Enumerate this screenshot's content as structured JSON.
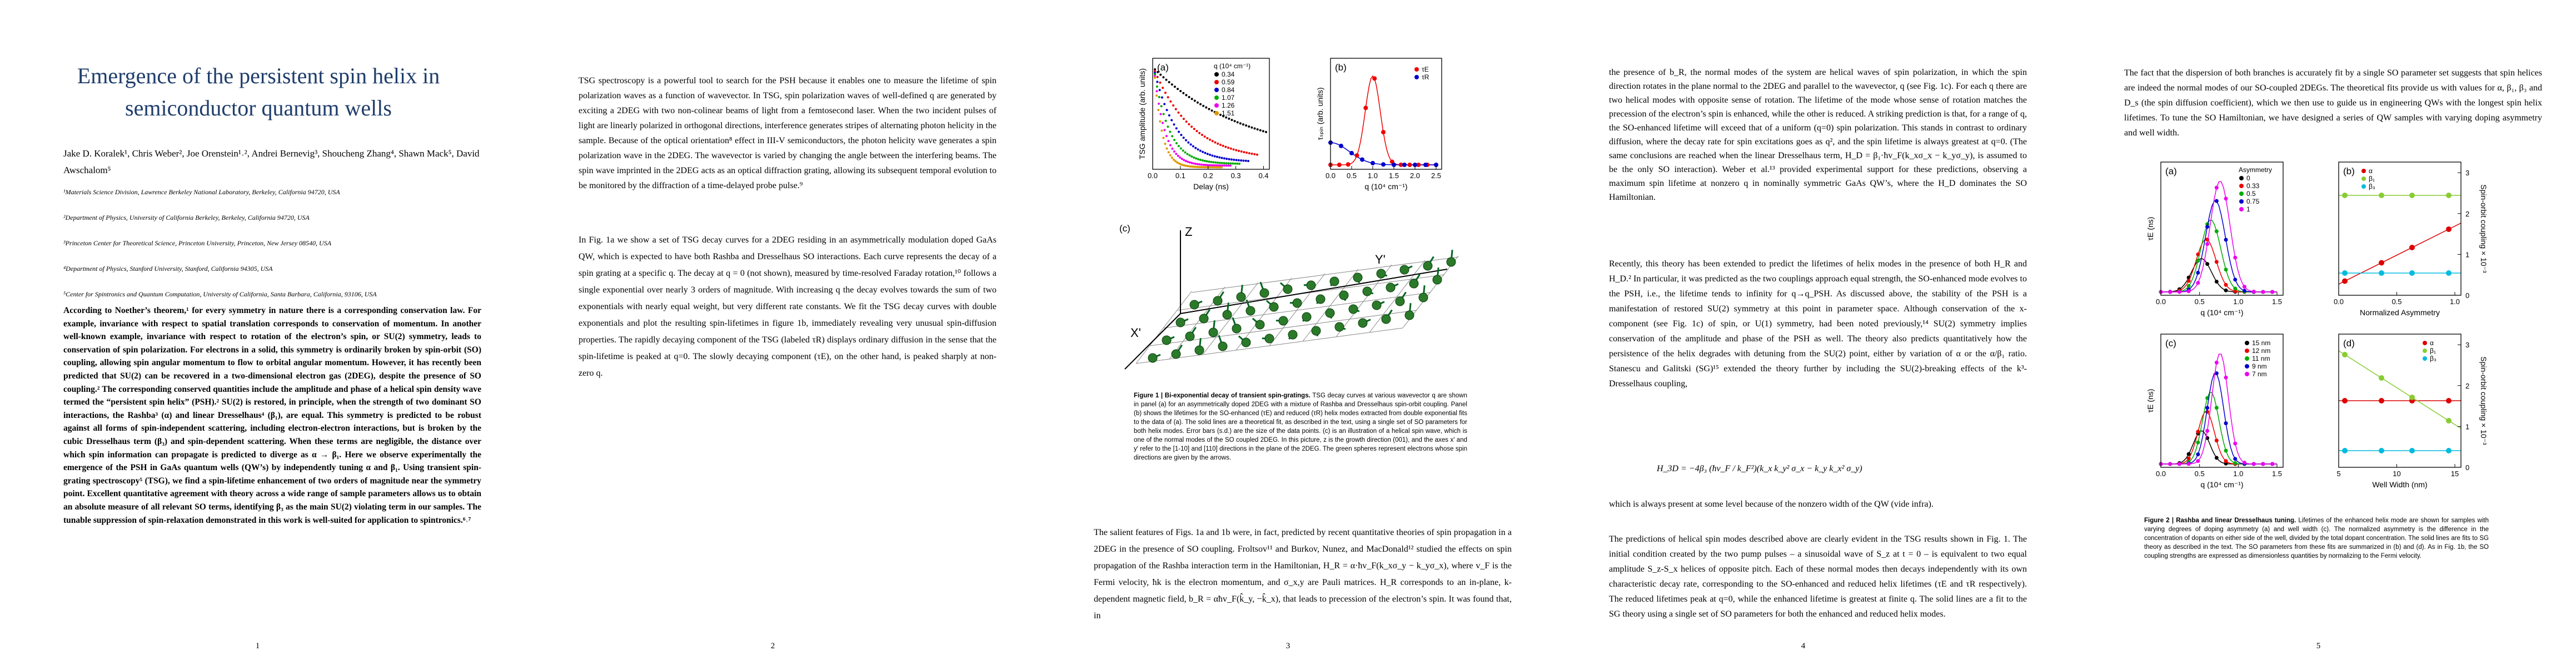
{
  "pages": [
    {
      "title": "Emergence of the persistent spin helix in semiconductor quantum wells",
      "authors": "Jake D. Koralek¹, Chris Weber², Joe Orenstein¹˒², Andrei Bernevig³, Shoucheng Zhang⁴, Shawn Mack⁵, David Awschalom⁵",
      "affiliations": [
        "¹Materials Science Division, Lawrence Berkeley National Laboratory, Berkeley, California 94720, USA",
        "²Department of Physics, University of California Berkeley, Berkeley, California 94720, USA",
        "³Princeton Center for Theoretical Science, Princeton University, Princeton, New Jersey 08540, USA",
        "⁴Department of Physics, Stanford University, Stanford, California 94305, USA",
        "⁵Center for Spintronics and Quantum Computation, University of California, Santa Barbara, California, 93106, USA"
      ],
      "abstract": "According to Noether’s theorem,¹ for every symmetry in nature there is a corresponding conservation law. For example, invariance with respect to spatial translation corresponds to conservation of momentum. In another well-known example, invariance with respect to rotation of the electron’s spin, or SU(2) symmetry, leads to conservation of spin polarization. For electrons in a solid, this symmetry is ordinarily broken by spin-orbit (SO) coupling, allowing spin angular momentum to flow to orbital angular momentum. However, it has recently been predicted that SU(2) can be recovered in a two-dimensional electron gas (2DEG), despite the presence of SO coupling.² The corresponding conserved quantities include the amplitude and phase of a helical spin density wave termed the “persistent spin helix” (PSH).² SU(2) is restored, in principle, when the strength of two dominant SO interactions, the Rashba³ (α) and linear Dresselhaus⁴ (β₁), are equal. This symmetry is predicted to be robust against all forms of spin-independent scattering, including electron-electron interactions, but is broken by the cubic Dresselhaus term (β₃) and spin-dependent scattering. When these terms are negligible, the distance over which spin information can propagate is predicted to diverge as α → β₁. Here we observe experimentally the emergence of the PSH in GaAs quantum wells (QW’s) by independently tuning α and β₁. Using transient spin-grating spectroscopy⁵ (TSG), we find a spin-lifetime enhancement of two orders of magnitude near the symmetry point. Excellent quantitative agreement with theory across a wide range of sample parameters allows us to obtain an absolute measure of all relevant SO terms, identifying β₃ as the main SU(2) violating term in our samples. The tunable suppression of spin-relaxation demonstrated in this work is well-suited for application to spintronics.⁶˒⁷",
      "page_number": 1
    },
    {
      "paragraphs": [
        "TSG spectroscopy is a powerful tool to search for the PSH because it enables one to measure the lifetime of spin polarization waves as a function of wavevector. In TSG, spin polarization waves of well-defined q are generated by exciting a 2DEG with two non-colinear beams of light from a femtosecond laser. When the two incident pulses of light are linearly polarized in orthogonal directions, interference generates stripes of alternating photon helicity in the sample. Because of the optical orientation⁸ effect in III-V semiconductors, the photon helicity wave generates a spin polarization wave in the 2DEG. The wavevector is varied by changing the angle between the interfering beams. The spin wave imprinted in the 2DEG acts as an optical diffraction grating, allowing its subsequent temporal evolution to be monitored by the diffraction of a time-delayed probe pulse.⁹",
        "In Fig. 1a we show a set of TSG decay curves for a 2DEG residing in an asymmetrically modulation doped GaAs QW, which is expected to have both Rashba and Dresselhaus SO interactions. Each curve represents the decay of a spin grating at a specific q. The decay at q = 0 (not shown), measured by time-resolved Faraday rotation,¹⁰ follows a single exponential over nearly 3 orders of magnitude. With increasing q the decay evolves towards the sum of two exponentials with nearly equal weight, but very different rate constants. We fit the TSG decay curves with double exponentials and plot the resulting spin-lifetimes in figure 1b, immediately revealing very unusual spin-diffusion properties. The rapidly decaying component of the TSG (labeled τR) displays ordinary diffusion in the sense that the spin-lifetime is peaked at q=0. The slowly decaying component (τE), on the other hand, is peaked sharply at non-zero q."
      ],
      "page_number": 2
    },
    {
      "figure": {
        "panels": [
          {
            "label": "(a)",
            "ylabel": "TSG amplitude (arb. units)",
            "xlabel": "Delay (ns)",
            "xticks": [
              "0.0",
              "0.1",
              "0.2",
              "0.3",
              "0.4"
            ],
            "legend_title": "q (10⁴ cm⁻¹)",
            "legend": [
              "0.34",
              "0.59",
              "0.84",
              "1.07",
              "1.26",
              "1.51"
            ]
          },
          {
            "label": "(b)",
            "ylabel": "τₛₚᵢₙ (arb. units)",
            "xlabel": "q (10⁴ cm⁻¹)",
            "xticks": [
              "0.0",
              "0.5",
              "1.0",
              "1.5",
              "2.0",
              "2.5"
            ],
            "legend": [
              "τE",
              "τR"
            ]
          },
          {
            "label": "(c)",
            "axes": [
              "Z",
              "Y'",
              "X'"
            ]
          }
        ],
        "caption_title": "Figure 1 | Bi-exponential decay of transient spin-gratings.",
        "caption": "TSG decay curves at various wavevector q are shown in panel (a) for an asymmetrically doped 2DEG with a mixture of Rashba and Dresselhaus spin-orbit coupling. Panel (b) shows the lifetimes for the SO-enhanced (τE) and reduced (τR) helix modes extracted from double exponential fits to the data of (a). The solid lines are a theoretical fit, as described in the text, using a single set of SO parameters for both helix modes. Error bars (s.d.) are the size of the data points. (c) is an illustration of a helical spin wave, which is one of the normal modes of the SO coupled 2DEG. In this picture, z is the growth direction (001), and the axes x′ and y′ refer to the [1-10] and [110] directions in the plane of the 2DEG. The green spheres represent electrons whose spin directions are given by the arrows."
      },
      "paragraphs": [
        "The salient features of Figs. 1a and 1b were, in fact, predicted by recent quantitative theories of spin propagation in a 2DEG in the presence of SO coupling. Froltsov¹¹ and Burkov, Nunez, and MacDonald¹² studied the effects on spin propagation of the Rashba interaction term in the Hamiltonian, H_R = α·ħv_F(k_xσ_y − k_yσ_x), where v_F is the Fermi velocity, ħk is the electron momentum, and σ_x,y are Pauli matrices. H_R corresponds to an in-plane, k-dependent magnetic field, b_R = αħv_F(k̂_y, −k̂_x), that leads to precession of the electron’s spin. It was found that, in"
      ],
      "page_number": 3
    },
    {
      "paragraphs": [
        "the presence of b_R, the normal modes of the system are helical waves of spin polarization, in which the spin direction rotates in the plane normal to the 2DEG and parallel to the wavevector, q (see Fig. 1c). For each q there are two helical modes with opposite sense of rotation. The lifetime of the mode whose sense of rotation matches the precession of the electron’s spin is enhanced, while the other is reduced. A striking prediction is that, for a range of q, the SO-enhanced lifetime will exceed that of a uniform (q=0) spin polarization. This stands in contrast to ordinary diffusion, where the decay rate for spin excitations goes as q², and the spin lifetime is always greatest at q=0. (The same conclusions are reached when the linear Dresselhaus term, H_D = β₁·ħv_F(k_xσ_x − k_yσ_y), is assumed to be the only SO interaction). Weber et al.¹³ provided experimental support for these predictions, observing a maximum spin lifetime at nonzero q in nominally symmetric GaAs QW’s, where the H_D dominates the SO Hamiltonian.",
        "Recently, this theory has been extended to predict the lifetimes of helix modes in the presence of both H_R and H_D.² In particular, it was predicted as the two couplings approach equal strength, the SO-enhanced mode evolves to the PSH, i.e., the lifetime tends to infinity for q→q_PSH. As discussed above, the stability of the PSH is a manifestation of restored SU(2) symmetry at this point in parameter space. Although conservation of the x-component (see Fig. 1c) of spin, or U(1) symmetry, had been noted previously,¹⁴ SU(2) symmetry implies conservation of the amplitude and phase of the PSH as well. The theory also predicts quantitatively how the persistence of the helix degrades with detuning from the SU(2) point, either by variation of α or the α/β₁ ratio. Stanescu and Galitski (SG)¹⁵ extended the theory further by including the SU(2)-breaking effects of the k³-Dresselhaus coupling,",
        "which is always present at some level because of the nonzero width of the QW (vide infra).",
        "The predictions of helical spin modes described above are clearly evident in the TSG results shown in Fig. 1. The initial condition created by the two pump pulses – a sinusoidal wave of S_z at t = 0 – is equivalent to two equal amplitude S_z-S_x helices of opposite pitch. Each of these normal modes then decays independently with its own characteristic decay rate, corresponding to the SO-enhanced and reduced helix lifetimes (τE and τR respectively). The reduced lifetimes peak at q=0, while the enhanced lifetime is greatest at finite q. The solid lines are a fit to the SG theory using a single set of SO parameters for both the enhanced and reduced helix modes."
      ],
      "equation": "H_3D = −4β₃ (ħv_F / k_F²)(k_x k_y² σ_x − k_y k_x² σ_y)",
      "page_number": 4
    },
    {
      "paragraphs": [
        "The fact that the dispersion of both branches is accurately fit by a single SO parameter set suggests that spin helices are indeed the normal modes of our SO-coupled 2DEGs. The theoretical fits provide us with values for α, β₁, β₃ and D_s (the spin diffusion coefficient), which we then use to guide us in engineering QWs with the longest spin helix lifetimes. To tune the SO Hamiltonian, we have designed a series of QW samples with varying doping asymmetry and well width."
      ],
      "figure": {
        "panels": [
          {
            "label": "(a)",
            "ylabel": "τE (ns)",
            "xlabel": "q (10⁴ cm⁻¹)",
            "xticks": [
              "0.0",
              "0.5",
              "1.0",
              "1.5"
            ],
            "legend_title": "Asymmetry",
            "legend": [
              "0",
              "0.33",
              "0.5",
              "0.75",
              "1"
            ]
          },
          {
            "label": "(b)",
            "xlabel": "Normalized Asymmetry",
            "xticks": [
              "0.0",
              "0.5",
              "1.0"
            ],
            "y2label": "Spin-orbit coupling × 10⁻³",
            "y2ticks": [
              "0",
              "1",
              "2",
              "3"
            ],
            "legend": [
              "α",
              "β₁",
              "β₃"
            ]
          },
          {
            "label": "(c)",
            "ylabel": "τE (ns)",
            "xlabel": "q (10⁴ cm⁻¹)",
            "xticks": [
              "0.0",
              "0.5",
              "1.0",
              "1.5"
            ],
            "legend": [
              "15 nm",
              "12 nm",
              "11 nm",
              "9 nm",
              "7 nm"
            ]
          },
          {
            "label": "(d)",
            "xlabel": "Well Width (nm)",
            "xticks": [
              "5",
              "10",
              "15"
            ],
            "y2label": "Spin-orbit coupling × 10⁻³",
            "y2ticks": [
              "0",
              "1",
              "2",
              "3"
            ],
            "legend": [
              "α",
              "β₁",
              "β₃"
            ]
          }
        ],
        "caption_title": "Figure 2 | Rashba and linear Dresselhaus tuning.",
        "caption": "Lifetimes of the enhanced helix mode are shown for samples with varying degrees of doping asymmetry (a) and well width (c). The normalized asymmetry is the difference in the concentration of dopants on either side of the well, divided by the total dopant concentration. The solid lines are fits to SG theory as described in the text. The SO parameters from these fits are summarized in (b) and (d). As in Fig. 1b, the SO coupling strengths are expressed as dimensionless quantities by normalizing to the Fermi velocity."
      },
      "page_number": 5
    }
  ]
}
